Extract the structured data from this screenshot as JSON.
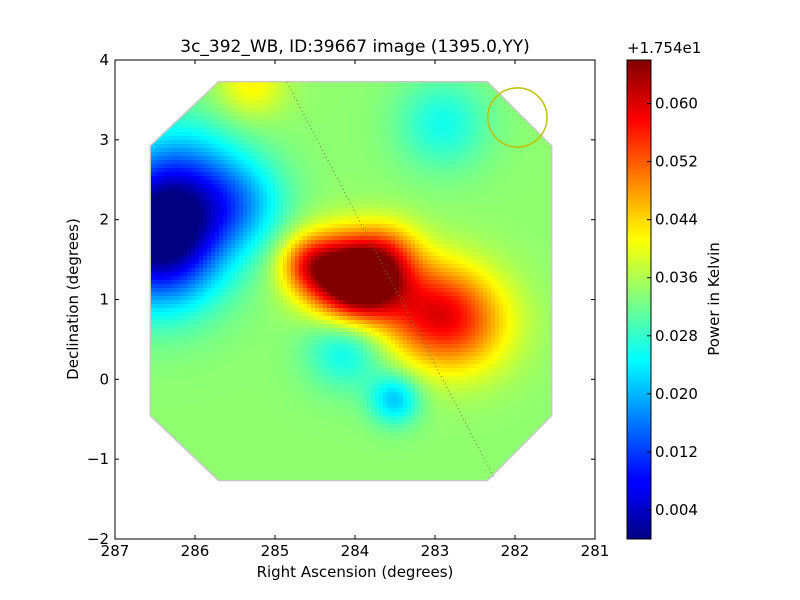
{
  "chart_data": {
    "type": "heatmap",
    "title": "3c_392_WB, ID:39667 image (1395.0,YY)",
    "xlabel": "Right Ascension (degrees)",
    "ylabel": "Declination (degrees)",
    "xlim": [
      287,
      281
    ],
    "ylim": [
      -2,
      4
    ],
    "x_ticks": [
      287,
      286,
      285,
      284,
      283,
      282,
      281
    ],
    "x_tick_labels": [
      "287",
      "286",
      "285",
      "284",
      "283",
      "282",
      "281"
    ],
    "y_ticks": [
      -2,
      -1,
      0,
      1,
      2,
      3,
      4
    ],
    "y_tick_labels": [
      "−2",
      "−1",
      "0",
      "1",
      "2",
      "3",
      "4"
    ],
    "grid": false,
    "colormap": "jet",
    "colorbar": {
      "label": "Power in Kelvin",
      "offset_label": "+1.754e1",
      "range": [
        0,
        0.066
      ],
      "ticks": [
        0.004,
        0.012,
        0.02,
        0.028,
        0.036,
        0.044,
        0.052,
        0.06
      ],
      "tick_labels": [
        "0.004",
        "0.012",
        "0.020",
        "0.028",
        "0.036",
        "0.044",
        "0.052",
        "0.060"
      ]
    },
    "footprint_octagon_deg": [
      [
        285.7,
        3.72
      ],
      [
        282.35,
        3.72
      ],
      [
        281.55,
        2.92
      ],
      [
        281.55,
        -0.45
      ],
      [
        282.35,
        -1.26
      ],
      [
        285.7,
        -1.26
      ],
      [
        286.55,
        -0.45
      ],
      [
        286.55,
        2.92
      ]
    ],
    "beam_circle": {
      "ra": 281.97,
      "dec": 3.28,
      "radius_deg": 0.37
    },
    "dotted_line": {
      "ra": [
        284.85,
        282.25
      ],
      "dec": [
        3.72,
        -1.25
      ]
    },
    "background_level": 0.034,
    "features": [
      {
        "ra": 283.9,
        "dec": 1.2,
        "amplitude": 0.031,
        "sigma": 0.35
      },
      {
        "ra": 284.25,
        "dec": 1.35,
        "amplitude": 0.02,
        "sigma": 0.35
      },
      {
        "ra": 284.6,
        "dec": 1.45,
        "amplitude": 0.012,
        "sigma": 0.25
      },
      {
        "ra": 283.6,
        "dec": 1.55,
        "amplitude": 0.012,
        "sigma": 0.3
      },
      {
        "ra": 283.1,
        "dec": 0.85,
        "amplitude": 0.018,
        "sigma": 0.45
      },
      {
        "ra": 282.6,
        "dec": 0.7,
        "amplitude": 0.012,
        "sigma": 0.45
      },
      {
        "ra": 286.45,
        "dec": 1.7,
        "amplitude": -0.032,
        "sigma": 0.55
      },
      {
        "ra": 286.2,
        "dec": 2.4,
        "amplitude": -0.018,
        "sigma": 0.55
      },
      {
        "ra": 285.4,
        "dec": 2.2,
        "amplitude": -0.01,
        "sigma": 0.4
      },
      {
        "ra": 283.5,
        "dec": -0.25,
        "amplitude": -0.013,
        "sigma": 0.22
      },
      {
        "ra": 284.1,
        "dec": 0.4,
        "amplitude": -0.01,
        "sigma": 0.35
      },
      {
        "ra": 282.9,
        "dec": 3.2,
        "amplitude": -0.008,
        "sigma": 0.4
      },
      {
        "ra": 285.3,
        "dec": 3.7,
        "amplitude": 0.008,
        "sigma": 0.3
      }
    ]
  }
}
